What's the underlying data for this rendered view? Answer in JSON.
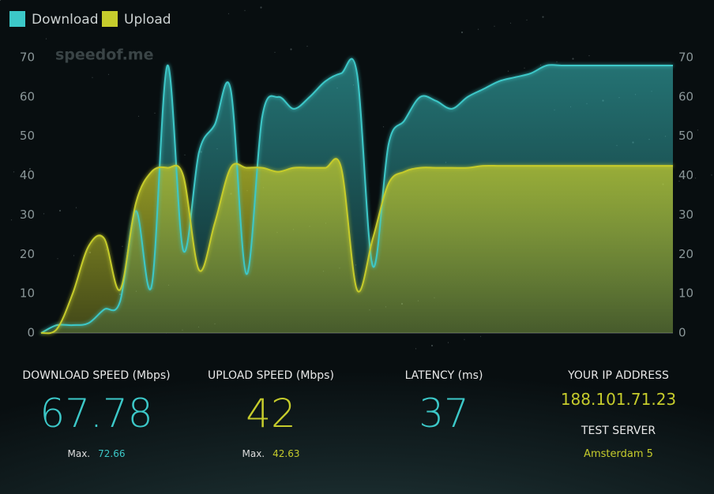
{
  "chart_data": {
    "type": "area",
    "watermark": "speedof.me",
    "series": [
      {
        "name": "Download",
        "color": "#3cc8c8",
        "values": [
          0,
          2,
          2,
          2.5,
          6,
          8,
          31,
          12,
          68,
          21,
          46,
          53,
          62,
          15,
          55,
          60,
          57,
          60,
          64,
          66,
          66,
          17,
          48,
          54,
          60,
          59,
          57,
          60,
          62,
          64,
          65,
          66,
          68,
          68,
          68,
          68,
          68,
          68,
          68,
          68,
          68
        ]
      },
      {
        "name": "Upload",
        "color": "#c6cc2c",
        "values": [
          0,
          1,
          10,
          22,
          24,
          11,
          33,
          41,
          42,
          40,
          16,
          28,
          42,
          42,
          42,
          41,
          42,
          42,
          42,
          42,
          11,
          24,
          38,
          41,
          42,
          42,
          42,
          42,
          42.5,
          42.5,
          42.5,
          42.5,
          42.5,
          42.5,
          42.5,
          42.5,
          42.5,
          42.5,
          42.5,
          42.5,
          42.5
        ]
      }
    ],
    "ylim": [
      0,
      70
    ],
    "yticks": [
      0,
      10,
      20,
      30,
      40,
      50,
      60,
      70
    ],
    "y2lim": [
      0,
      70
    ],
    "y2ticks": [
      0,
      10,
      20,
      30,
      40,
      50,
      60,
      70
    ],
    "grid": false,
    "legend": "top-left"
  },
  "stats": [
    {
      "label": "DOWNLOAD SPEED (Mbps)",
      "value": 67.78,
      "max_label": "Max.",
      "max": 72.66
    },
    {
      "label": "UPLOAD SPEED (Mbps)",
      "value": 42,
      "max_label": "Max.",
      "max": 42.63
    },
    {
      "label": "LATENCY (ms)",
      "value": 37
    }
  ],
  "ip": {
    "label": "YOUR IP ADDRESS",
    "value": "188.101.71.23"
  },
  "server": {
    "label": "TEST SERVER",
    "value": "Amsterdam 5"
  }
}
